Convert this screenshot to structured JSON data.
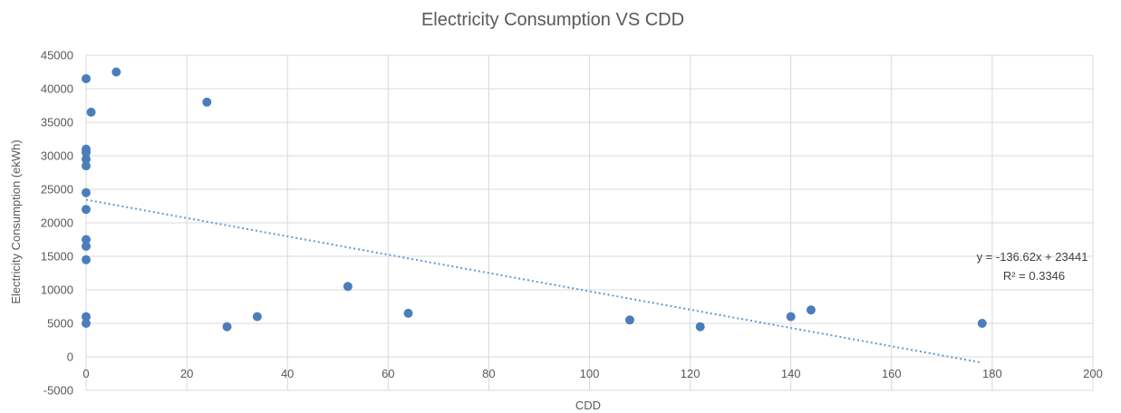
{
  "chart_data": {
    "type": "scatter",
    "title": "Electricity Consumption VS CDD",
    "xlabel": "CDD",
    "ylabel": "Electricity Consumption (ekWh)",
    "xlim": [
      0,
      200
    ],
    "ylim": [
      -5000,
      45000
    ],
    "x_ticks": [
      "0",
      "20",
      "40",
      "60",
      "80",
      "100",
      "120",
      "140",
      "160",
      "180",
      "200"
    ],
    "y_ticks": [
      "-5000",
      "0",
      "5000",
      "10000",
      "15000",
      "20000",
      "25000",
      "30000",
      "35000",
      "40000",
      "45000"
    ],
    "grid": true,
    "point_color": "#4a7ebb",
    "trendline_color": "#5b9bd5",
    "points": [
      {
        "x": 0,
        "y": 41500
      },
      {
        "x": 6,
        "y": 42500
      },
      {
        "x": 1,
        "y": 36500
      },
      {
        "x": 24,
        "y": 38000
      },
      {
        "x": 0,
        "y": 31000
      },
      {
        "x": 0,
        "y": 30500
      },
      {
        "x": 0,
        "y": 29500
      },
      {
        "x": 0,
        "y": 28500
      },
      {
        "x": 0,
        "y": 24500
      },
      {
        "x": 0,
        "y": 22000
      },
      {
        "x": 0,
        "y": 17500
      },
      {
        "x": 0,
        "y": 16500
      },
      {
        "x": 0,
        "y": 14500
      },
      {
        "x": 0,
        "y": 6000
      },
      {
        "x": 0,
        "y": 5000
      },
      {
        "x": 28,
        "y": 4500
      },
      {
        "x": 34,
        "y": 6000
      },
      {
        "x": 52,
        "y": 10500
      },
      {
        "x": 64,
        "y": 6500
      },
      {
        "x": 108,
        "y": 5500
      },
      {
        "x": 122,
        "y": 4500
      },
      {
        "x": 140,
        "y": 6000
      },
      {
        "x": 144,
        "y": 7000
      },
      {
        "x": 178,
        "y": 5000
      }
    ],
    "trendline": {
      "slope": -136.62,
      "intercept": 23441,
      "x_range": [
        0,
        178
      ],
      "equation": "y = -136.62x + 23441",
      "r_squared": "R² = 0.3346"
    }
  }
}
